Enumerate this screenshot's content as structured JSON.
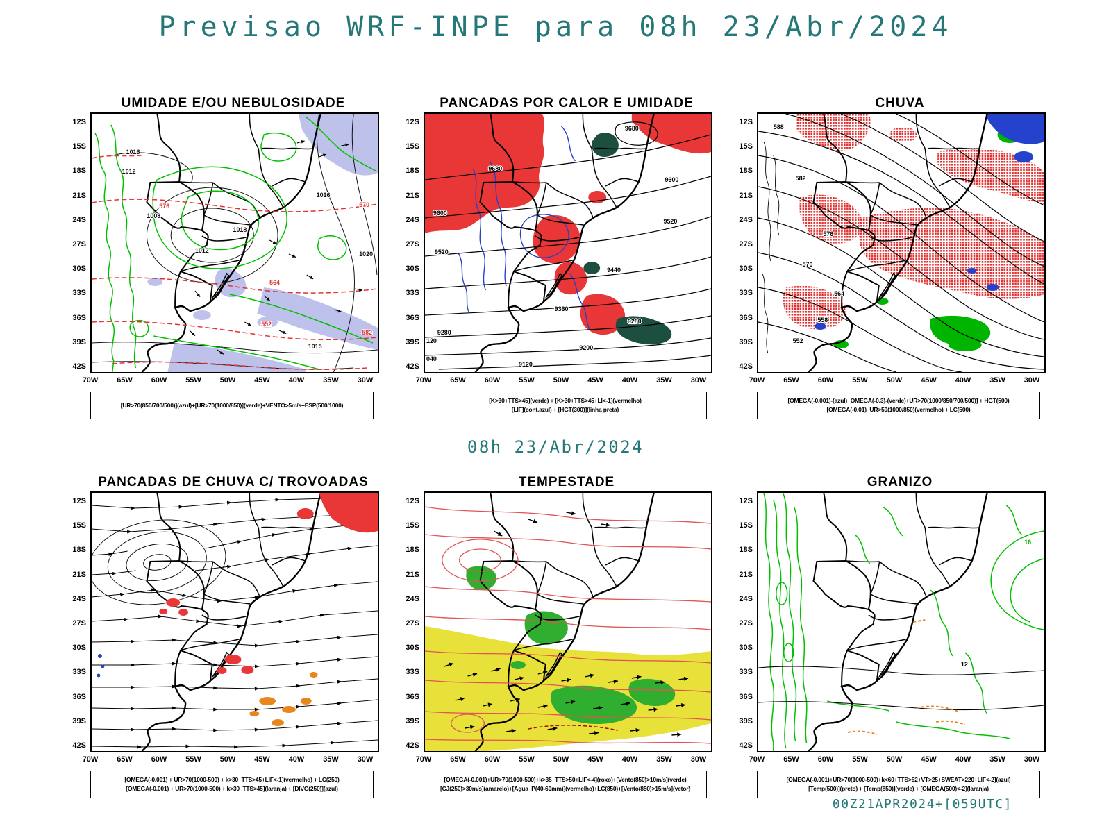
{
  "page": {
    "title": "Previsao WRF-INPE  para 08h 23/Abr/2024",
    "subtitle": "08h 23/Abr/2024",
    "footer": "00Z21APR2024+[059UTC]"
  },
  "axes": {
    "y_labels": [
      "12S",
      "15S",
      "18S",
      "21S",
      "24S",
      "27S",
      "30S",
      "33S",
      "36S",
      "39S",
      "42S"
    ],
    "x_labels": [
      "70W",
      "65W",
      "60W",
      "55W",
      "50W",
      "45W",
      "40W",
      "35W",
      "30W"
    ]
  },
  "colors": {
    "accent_teal": "#267878",
    "contour_green": "#00c000",
    "fill_red": "#e93636",
    "contour_red_dashed": "#e23333",
    "contour_blue": "#2442cc",
    "shade_lavender": "#b3b7e8",
    "shade_yellow": "#e8e13a",
    "fill_orange": "#e8871e",
    "fill_darkgreen": "#1d4f41",
    "fill_green": "#2fae2f",
    "contour_black": "#000000"
  },
  "panels": [
    {
      "id": "umidade",
      "title": "UMIDADE E/OU NEBULOSIDADE",
      "caption_lines": [
        "[UR>70(850/700/500)](azul)+[UR>70(1000/850)](verde)+VENTO>5m/s+ESP(500/1000)"
      ],
      "contour_labels": [
        "1016",
        "1012",
        "1008",
        "1018",
        "1012",
        "1020",
        "1016",
        "1015",
        "576",
        "570",
        "564",
        "552",
        "582"
      ]
    },
    {
      "id": "pancadas-calor-umidade",
      "title": "PANCADAS POR CALOR E UMIDADE",
      "caption_lines": [
        "[K>30+TTS>45](verde) + [K>30+TTS>45+LI<-1](vermelho)",
        "[LIF](cont.azul) + [HGT(300)](linha preta)"
      ],
      "contour_labels": [
        "9680",
        "9680",
        "9600",
        "9600",
        "9520",
        "9520",
        "9440",
        "9360",
        "9280",
        "9280",
        "9200",
        "9120",
        "120",
        "040"
      ]
    },
    {
      "id": "chuva",
      "title": "CHUVA",
      "caption_lines": [
        "[OMEGA(-0.001)-(azul)+OMEGA(-0.3)-(verde)+UR>70(1000/850/700/500)] + HGT(500)",
        "[OMEGA(-0.01)_UR>50(1000/850)(vermelho) + LC(500)"
      ],
      "contour_labels": [
        "588",
        "582",
        "576",
        "570",
        "564",
        "558",
        "552"
      ]
    },
    {
      "id": "pancadas-chuva-trovoadas",
      "title": "PANCADAS DE CHUVA C/ TROVOADAS",
      "caption_lines": [
        "[OMEGA(-0.001) + UR>70(1000-500) + k>30_TTS>45+LIF<-1](vermelho) + LC(250)",
        "[OMEGA(-0.001) + UR>70(1000-500) + k>30_TTS>45](laranja) + [DIVG(250)](azul)"
      ],
      "contour_labels": []
    },
    {
      "id": "tempestade",
      "title": "TEMPESTADE",
      "caption_lines": [
        "[OMEGA(-0.001)+UR>70(1000-500)+k>35_TTS>50+LIF<-4](roxo)+[Vento(850)>10m/s](verde)",
        "[CJ(250)>30m/s](amarelo)+[Agua_P(40-60mm)](vermelho)+LC(850)+[Vento(850)>15m/s](vetor)"
      ],
      "contour_labels": []
    },
    {
      "id": "granizo",
      "title": "GRANIZO",
      "caption_lines": [
        "[OMEGA(-0.001)+UR>70(1000-500)+k<60+TTS>52+VT>25+SWEAT>220+LIF<-2](azul)",
        "[Temp(500)](preto) + [Temp(850)](verde) + [OMEGA(500)<-2](laranja)"
      ],
      "contour_labels": [
        "16",
        "12"
      ]
    }
  ]
}
